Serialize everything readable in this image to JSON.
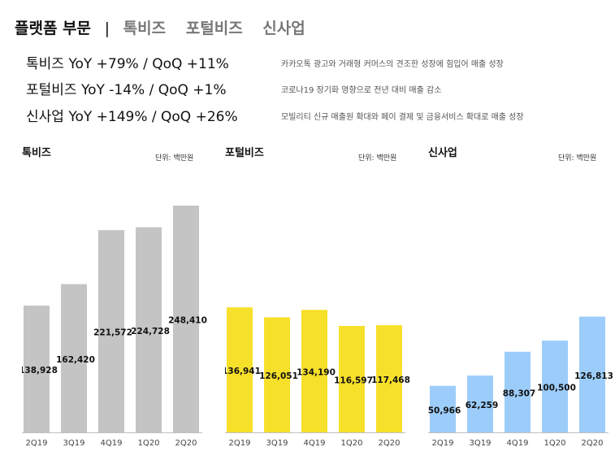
{
  "header": {
    "active_tab": "플랫폼 부문",
    "separator": "|",
    "tabs": [
      "톡비즈",
      "포털비즈",
      "신사업"
    ]
  },
  "summary": [
    {
      "main": "톡비즈 YoY +79% / QoQ +11%",
      "note": "카카오톡 광고와 거래형 커머스의 견조한 성장에 힘입어 매출 성장"
    },
    {
      "main": "포털비즈 YoY -14% / QoQ +1%",
      "note": "코로나19 장기화 영향으로 전년 대비 매출 감소"
    },
    {
      "main": "신사업 YoY +149% / QoQ +26%",
      "note": "모빌리티 신규 매출원 확대와 페이 결제 및 금융서비스 확대로 매출 성장"
    }
  ],
  "chart_data": [
    {
      "type": "bar",
      "title": "톡비즈",
      "unit": "단위: 백만원",
      "categories": [
        "2Q19",
        "3Q19",
        "4Q19",
        "1Q20",
        "2Q20"
      ],
      "values": [
        138928,
        162420,
        221572,
        224728,
        248410
      ],
      "labels": [
        "138,928",
        "162,420",
        "221,572",
        "224,728",
        "248,410"
      ],
      "color": "#c4c4c4",
      "ylim": [
        0,
        260000
      ]
    },
    {
      "type": "bar",
      "title": "포털비즈",
      "unit": "단위: 백만원",
      "categories": [
        "2Q19",
        "3Q19",
        "4Q19",
        "1Q20",
        "2Q20"
      ],
      "values": [
        136941,
        126051,
        134190,
        116597,
        117468
      ],
      "labels": [
        "136,941",
        "126,051",
        "134,190",
        "116,597",
        "117,468"
      ],
      "color": "#f7e02a",
      "ylim": [
        0,
        260000
      ]
    },
    {
      "type": "bar",
      "title": "신사업",
      "unit": "단위: 백만원",
      "categories": [
        "2Q19",
        "3Q19",
        "4Q19",
        "1Q20",
        "2Q20"
      ],
      "values": [
        50966,
        62259,
        88307,
        100500,
        126813
      ],
      "labels": [
        "50,966",
        "62,259",
        "88,307",
        "100,500",
        "126,813"
      ],
      "color": "#9ccdfa",
      "ylim": [
        0,
        260000
      ]
    }
  ]
}
